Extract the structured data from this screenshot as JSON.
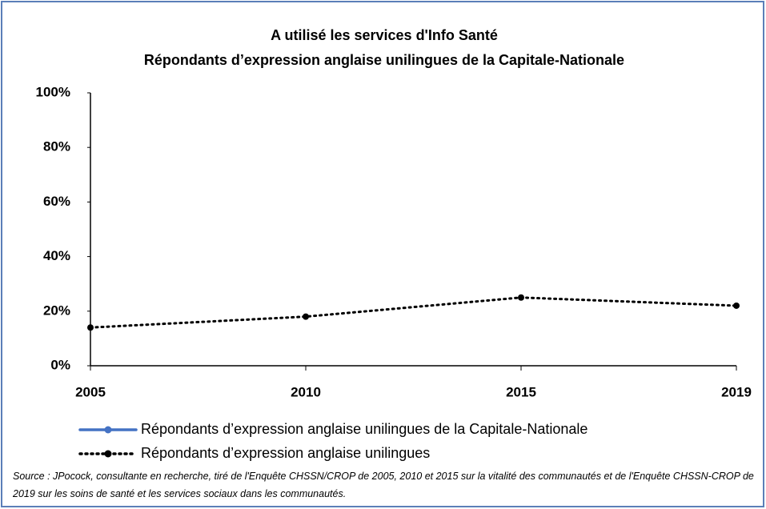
{
  "chart_data": {
    "type": "line",
    "title": "A utilisé les services d'Info Santé",
    "subtitle": "Répondants d’expression anglaise unilingues de la Capitale-Nationale",
    "categories": [
      "2005",
      "2010",
      "2015",
      "2019"
    ],
    "series": [
      {
        "name": "Répondants d’expression anglaise unilingues de la Capitale-Nationale",
        "color": "#4472c4",
        "line_style": "solid",
        "values": [
          null,
          null,
          null,
          null
        ]
      },
      {
        "name": "Répondants d’expression anglaise unilingues",
        "color": "#000000",
        "line_style": "dotted",
        "values": [
          14,
          18,
          25,
          22
        ]
      }
    ],
    "ylim": [
      0,
      100
    ],
    "yticks": [
      {
        "value": 0,
        "label": "0%"
      },
      {
        "value": 20,
        "label": "20%"
      },
      {
        "value": 40,
        "label": "40%"
      },
      {
        "value": 60,
        "label": "60%"
      },
      {
        "value": 80,
        "label": "80%"
      },
      {
        "value": 100,
        "label": "100%"
      }
    ],
    "grid": false,
    "legend": "bottom",
    "source": "Source : JPocock, consultante en recherche, tiré de l'Enquête CHSSN/CROP de 2005, 2010 et 2015 sur la vitalité des communautés et de l'Enquête CHSSN-CROP de 2019 sur les soins de santé et les services sociaux dans les communautés."
  }
}
